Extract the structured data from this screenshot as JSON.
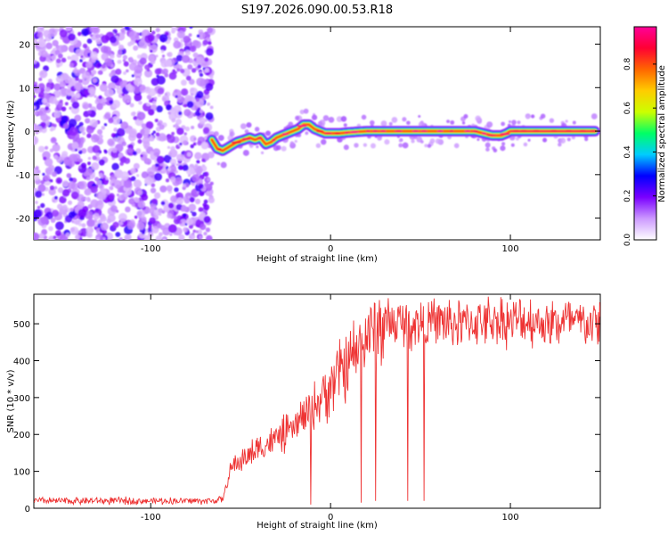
{
  "title": "S197.2026.090.00.53.R18",
  "chart_data": [
    {
      "type": "heatmap",
      "xlabel": "Height of straight line (km)",
      "ylabel": "Frequency (Hz)",
      "xlim": [
        -165,
        150
      ],
      "ylim": [
        -25,
        24
      ],
      "xticks": [
        -100,
        0,
        100
      ],
      "xtick_labels": [
        "-100",
        "0",
        "100"
      ],
      "yticks": [
        -20,
        -10,
        0,
        10,
        20
      ],
      "ytick_labels": [
        "-20",
        "-10",
        "0",
        "10",
        "20"
      ],
      "noise_region_x": [
        -165,
        -66
      ],
      "ridge": {
        "x": [
          -66,
          -63,
          -60,
          -56,
          -52,
          -48,
          -45,
          -42,
          -39,
          -36,
          -33,
          -30,
          -27,
          -24,
          -21,
          -18,
          -15,
          -12,
          -9,
          -6,
          -3,
          0,
          5,
          10,
          20,
          30,
          40,
          50,
          60,
          70,
          80,
          85,
          90,
          95,
          98,
          100,
          105,
          110,
          120,
          130,
          140,
          147
        ],
        "y": [
          -2,
          -4,
          -4.5,
          -3.5,
          -2.5,
          -2,
          -1.5,
          -2,
          -1.5,
          -3,
          -2.5,
          -1.5,
          -1,
          -0.5,
          0,
          0.5,
          1.5,
          1.5,
          0.5,
          0,
          -0.5,
          -0.5,
          -0.5,
          -0.3,
          0,
          0,
          0,
          0,
          0,
          0,
          0,
          -0.5,
          -1,
          -1,
          -0.5,
          0,
          0,
          0,
          0,
          0,
          0,
          0
        ]
      },
      "colorbar": {
        "label": "Normalized spectral amplitude",
        "range": [
          0,
          0.97
        ],
        "ticks": [
          0.0,
          0.2,
          0.4,
          0.6,
          0.8
        ],
        "tick_labels": [
          "0.0",
          "0.2",
          "0.4",
          "0.6",
          "0.8"
        ],
        "colors": [
          "#ffffff",
          "#cc99ff",
          "#7a00ff",
          "#0000ff",
          "#00ccff",
          "#00ff66",
          "#ccff00",
          "#ffcc00",
          "#ff6600",
          "#ff0033",
          "#ff0099"
        ]
      }
    },
    {
      "type": "line",
      "xlabel": "Height of straight line (km)",
      "ylabel": "SNR (10 * v/v)",
      "xlim": [
        -165,
        150
      ],
      "ylim": [
        0,
        580
      ],
      "xticks": [
        -100,
        0,
        100
      ],
      "xtick_labels": [
        "-100",
        "0",
        "100"
      ],
      "yticks": [
        0,
        100,
        200,
        300,
        400,
        500
      ],
      "ytick_labels": [
        "0",
        "100",
        "200",
        "300",
        "400",
        "500"
      ],
      "color": "#ee3333",
      "series": [
        {
          "name": "SNR",
          "x": [
            -165,
            -150,
            -135,
            -120,
            -105,
            -90,
            -75,
            -66,
            -60,
            -58,
            -55,
            -50,
            -45,
            -40,
            -35,
            -30,
            -25,
            -20,
            -15,
            -10,
            -5,
            0,
            5,
            10,
            15,
            18,
            20,
            25,
            30,
            40,
            50,
            60,
            70,
            80,
            90,
            100,
            110,
            120,
            130,
            140,
            150
          ],
          "values": [
            20,
            20,
            20,
            20,
            20,
            20,
            20,
            20,
            25,
            60,
            110,
            130,
            145,
            160,
            175,
            190,
            200,
            220,
            245,
            270,
            300,
            335,
            365,
            390,
            425,
            445,
            460,
            490,
            500,
            500,
            500,
            505,
            500,
            505,
            510,
            505,
            510,
            500,
            505,
            500,
            500
          ]
        }
      ],
      "dropouts": [
        {
          "x": -11,
          "value": 10
        },
        {
          "x": 17,
          "value": 15
        },
        {
          "x": 25,
          "value": 20
        },
        {
          "x": 43,
          "value": 20
        },
        {
          "x": 52,
          "value": 20
        }
      ]
    }
  ]
}
